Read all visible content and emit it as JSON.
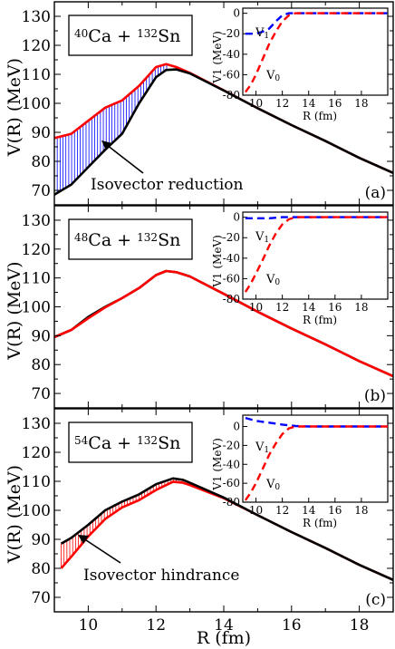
{
  "chart_data": [
    {
      "type": "line",
      "panel_label": "(a)",
      "system_label": {
        "pre": "40",
        "a": "Ca + ",
        "sup2": "132",
        "b": "Sn"
      },
      "xlabel": "R (fm)",
      "ylabel": "V(R) (MeV)",
      "xlim": [
        9,
        19
      ],
      "ylim": [
        65,
        135
      ],
      "yticks": [
        70,
        80,
        90,
        100,
        110,
        120,
        130
      ],
      "xticks": [
        10,
        12,
        14,
        16,
        18
      ],
      "annotation": "Isovector reduction",
      "series": [
        {
          "color": "#ff0000",
          "x": [
            9.0,
            9.5,
            10.0,
            10.5,
            11.0,
            11.5,
            12.0,
            12.3,
            12.6,
            13.0,
            14.0,
            15.0,
            16.0,
            17.0,
            18.0,
            19.0
          ],
          "y": [
            88,
            89.5,
            94,
            98.5,
            101,
            106,
            112.5,
            113.5,
            112.5,
            110.5,
            104.5,
            98.3,
            92.5,
            87,
            81.2,
            76
          ]
        },
        {
          "color": "#000000",
          "x": [
            9.0,
            9.5,
            10.0,
            10.5,
            11.0,
            11.5,
            12.0,
            12.3,
            12.6,
            13.0,
            14.0,
            15.0,
            16.0,
            17.0,
            18.0,
            19.0
          ],
          "y": [
            68.5,
            72,
            78,
            84,
            89.5,
            100,
            109,
            111.5,
            111.7,
            110.3,
            104.4,
            98.3,
            92.5,
            87,
            81.2,
            76
          ]
        }
      ],
      "inset": {
        "xlabel": "R (fm)",
        "ylabel": "V1 (MeV)",
        "xlim": [
          9,
          20
        ],
        "ylim": [
          -80,
          5
        ],
        "xticks": [
          10,
          12,
          14,
          16,
          18
        ],
        "yticks": [
          0,
          -20,
          -40,
          -60,
          -80
        ],
        "labels": {
          "v1": "V",
          "v1_sub": "1",
          "v0": "V",
          "v0_sub": "0"
        },
        "series": [
          {
            "name": "V1",
            "color": "#0000ff",
            "x": [
              9.2,
              10,
              10.5,
              11,
              11.5,
              12,
              12.5,
              13,
              14,
              16,
              18,
              20
            ],
            "y": [
              -20,
              -20,
              -18,
              -15,
              -8,
              -2,
              0,
              0,
              0,
              0,
              0,
              0
            ]
          },
          {
            "name": "V0",
            "color": "#ff0000",
            "x": [
              9.2,
              9.6,
              10,
              10.5,
              11,
              11.5,
              12,
              12.5,
              13,
              14,
              16,
              18,
              20
            ],
            "y": [
              -77,
              -70,
              -60,
              -45,
              -30,
              -18,
              -8,
              -2,
              0,
              0,
              0,
              0,
              0
            ]
          }
        ]
      }
    },
    {
      "type": "line",
      "panel_label": "(b)",
      "system_label": {
        "pre": "48",
        "a": "Ca + ",
        "sup2": "132",
        "b": "Sn"
      },
      "xlabel": "R (fm)",
      "ylabel": "V(R) (MeV)",
      "xlim": [
        9,
        19
      ],
      "ylim": [
        65,
        135
      ],
      "yticks": [
        70,
        80,
        90,
        100,
        110,
        120,
        130
      ],
      "xticks": [
        10,
        12,
        14,
        16,
        18
      ],
      "series": [
        {
          "color": "#000000",
          "x": [
            9.0,
            9.5,
            10.0,
            10.5,
            11.0,
            11.5,
            12.0,
            12.3,
            12.6,
            13.0,
            14.0,
            15.0,
            16.0,
            17.0,
            18.0,
            19.0
          ],
          "y": [
            89.5,
            92,
            96.5,
            100,
            103,
            106.5,
            111,
            112.4,
            112,
            110.5,
            104.5,
            98.3,
            92.5,
            87,
            81.2,
            76
          ]
        },
        {
          "color": "#ff0000",
          "x": [
            9.0,
            9.5,
            10.0,
            10.5,
            11.0,
            11.5,
            12.0,
            12.3,
            12.6,
            13.0,
            14.0,
            15.0,
            16.0,
            17.0,
            18.0,
            19.0
          ],
          "y": [
            89.5,
            92,
            96,
            99.8,
            103,
            106.5,
            111,
            112.4,
            112,
            110.5,
            104.5,
            98.3,
            92.5,
            87,
            81.2,
            76
          ]
        }
      ],
      "inset": {
        "xlabel": "R (fm)",
        "ylabel": "V1 (MeV)",
        "xlim": [
          9,
          20
        ],
        "ylim": [
          -80,
          5
        ],
        "xticks": [
          10,
          12,
          14,
          16,
          18
        ],
        "yticks": [
          0,
          -20,
          -40,
          -60,
          -80
        ],
        "labels": {
          "v1": "V",
          "v1_sub": "1",
          "v0": "V",
          "v0_sub": "0"
        },
        "series": [
          {
            "name": "V1",
            "color": "#0000ff",
            "x": [
              9.2,
              10,
              11,
              12,
              13,
              14,
              16,
              18,
              20
            ],
            "y": [
              -1,
              -1,
              -1,
              0,
              0,
              0,
              0,
              0,
              0
            ]
          },
          {
            "name": "V0",
            "color": "#ff0000",
            "x": [
              9.2,
              9.6,
              10,
              10.5,
              11,
              11.5,
              12,
              12.5,
              13,
              14,
              16,
              18,
              20
            ],
            "y": [
              -73,
              -65,
              -55,
              -42,
              -28,
              -16,
              -7,
              -2,
              0,
              0,
              0,
              0,
              0
            ]
          }
        ]
      }
    },
    {
      "type": "line",
      "panel_label": "(c)",
      "system_label": {
        "pre": "54",
        "a": "Ca + ",
        "sup2": "132",
        "b": "Sn"
      },
      "xlabel": "R (fm)",
      "ylabel": "V(R) (MeV)",
      "xlim": [
        9,
        19
      ],
      "ylim": [
        65,
        135
      ],
      "yticks": [
        70,
        80,
        90,
        100,
        110,
        120,
        130
      ],
      "xticks": [
        10,
        12,
        14,
        16,
        18
      ],
      "annotation": "Isovector hindrance",
      "series": [
        {
          "color": "#ff0000",
          "x": [
            9.2,
            9.5,
            10.0,
            10.5,
            11.0,
            11.5,
            12.0,
            12.5,
            12.8,
            13.0,
            14.0,
            15.0,
            16.0,
            17.0,
            18.0,
            19.0
          ],
          "y": [
            80,
            84,
            91,
            97,
            101,
            103.5,
            107,
            109.8,
            109.5,
            108.7,
            104.2,
            98.3,
            92.5,
            87,
            81.2,
            76
          ]
        },
        {
          "color": "#000000",
          "x": [
            9.2,
            9.5,
            10.0,
            10.5,
            11.0,
            11.5,
            12.0,
            12.5,
            12.8,
            13.0,
            14.0,
            15.0,
            16.0,
            17.0,
            18.0,
            19.0
          ],
          "y": [
            88.5,
            90.5,
            95,
            100,
            103,
            105.5,
            109,
            111,
            110.5,
            109.5,
            104.4,
            98.3,
            92.5,
            87,
            81.2,
            76
          ]
        }
      ],
      "inset": {
        "xlabel": "R (fm)",
        "ylabel": "V1 (MeV)",
        "xlim": [
          9,
          20
        ],
        "ylim": [
          -80,
          12
        ],
        "xticks": [
          10,
          12,
          14,
          16,
          18
        ],
        "yticks": [
          0,
          -20,
          -40,
          -60,
          -80
        ],
        "labels": {
          "v1": "V",
          "v1_sub": "1",
          "v0": "V",
          "v0_sub": "0"
        },
        "series": [
          {
            "name": "V1",
            "color": "#0000ff",
            "x": [
              9.2,
              10,
              11,
              12,
              13,
              14,
              16,
              18,
              20
            ],
            "y": [
              9,
              6,
              4,
              2,
              0.5,
              0,
              0,
              0,
              0
            ]
          },
          {
            "name": "V0",
            "color": "#ff0000",
            "x": [
              9.2,
              9.6,
              10,
              10.5,
              11,
              11.5,
              12,
              12.5,
              13,
              14,
              16,
              18,
              20
            ],
            "y": [
              -78,
              -70,
              -60,
              -45,
              -30,
              -18,
              -8,
              -2,
              0,
              0,
              0,
              0,
              0
            ]
          }
        ]
      }
    }
  ]
}
